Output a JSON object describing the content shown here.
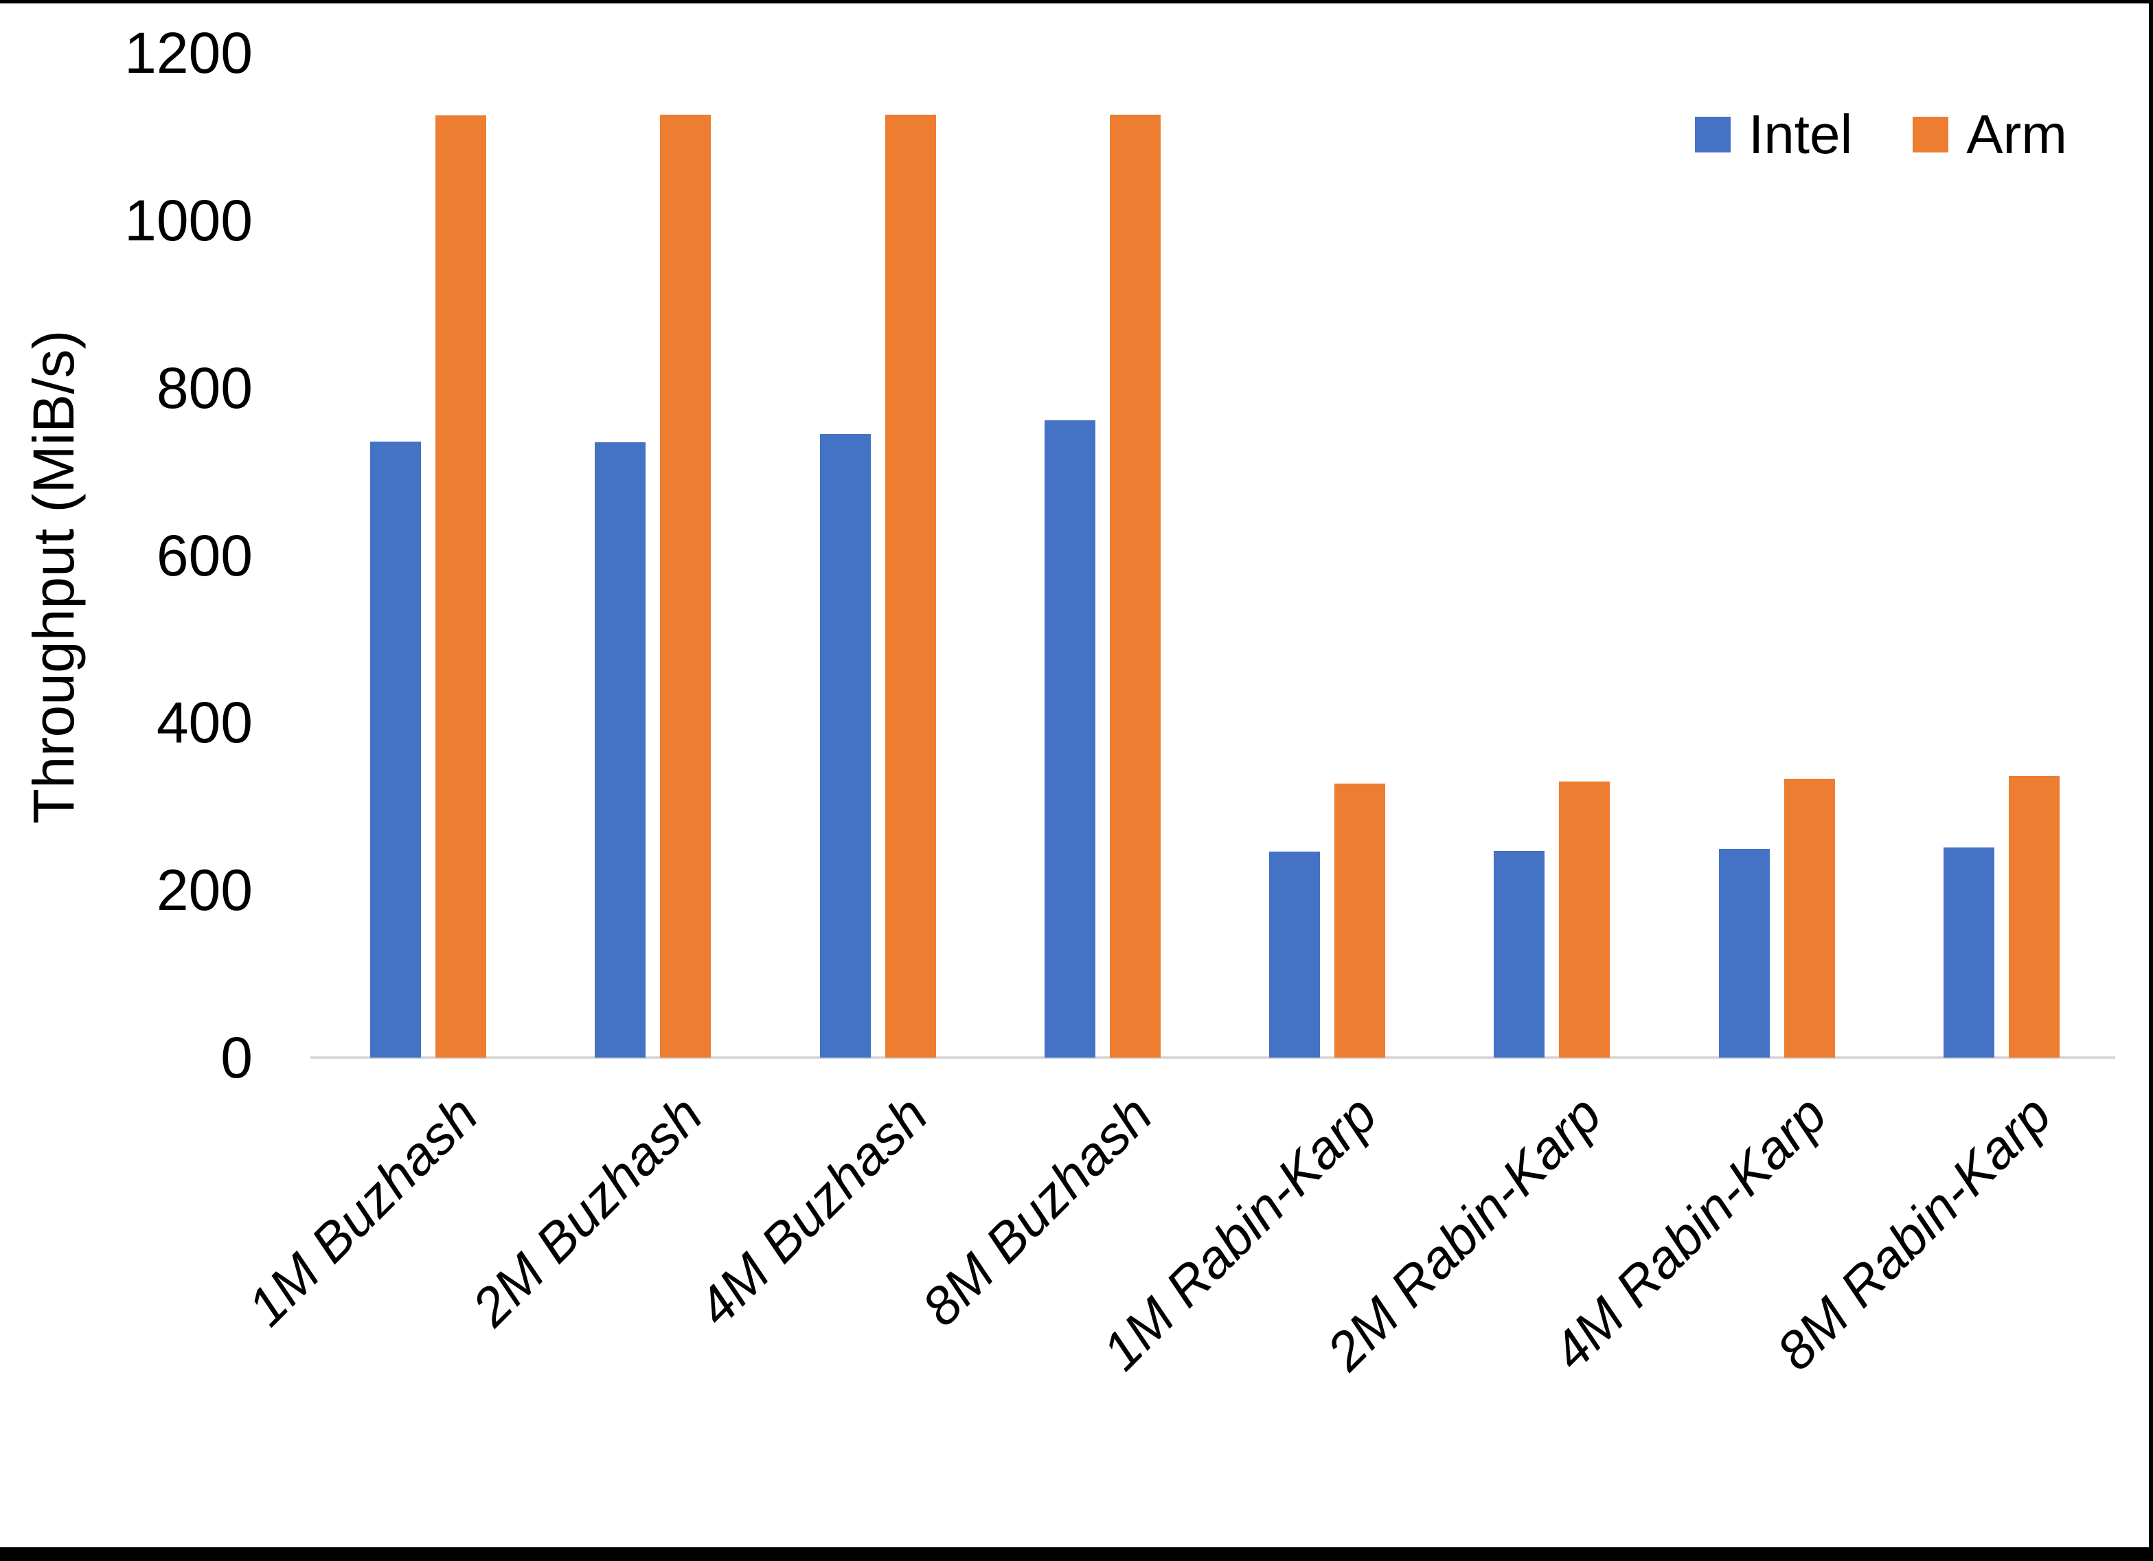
{
  "chart_data": {
    "type": "bar",
    "title": "",
    "ylabel": "Throughput (MiB/s)",
    "xlabel": "",
    "ylim": [
      0,
      1200
    ],
    "yticks": [
      0,
      200,
      400,
      600,
      800,
      1000,
      1200
    ],
    "grid": false,
    "legend_position": "top-right",
    "axis_line_color": "#d9d9d9",
    "x_tick_style": "italic, rotated 45deg",
    "categories": [
      "1M Buzhash",
      "2M Buzhash",
      "4M Buzhash",
      "8M Buzhash",
      "1M Rabin-Karp",
      "2M Rabin-Karp",
      "4M Rabin-Karp",
      "8M Rabin-Karp"
    ],
    "series": [
      {
        "name": "Intel",
        "color": "#4472C4",
        "values": [
          736,
          735,
          745,
          761,
          246,
          247,
          249,
          251
        ]
      },
      {
        "name": "Arm",
        "color": "#ED7D31",
        "values": [
          1125,
          1126,
          1126,
          1126,
          327,
          330,
          333,
          336
        ]
      }
    ]
  }
}
